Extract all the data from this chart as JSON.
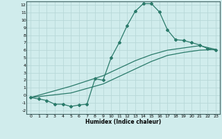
{
  "xlabel": "Humidex (Indice chaleur)",
  "bg_color": "#d0ecec",
  "grid_color": "#b8d8d8",
  "line_color": "#2a7a6a",
  "xlim": [
    -0.5,
    23.5
  ],
  "ylim": [
    -2.5,
    12.5
  ],
  "xticks": [
    0,
    1,
    2,
    3,
    4,
    5,
    6,
    7,
    8,
    9,
    10,
    11,
    12,
    13,
    14,
    15,
    16,
    17,
    18,
    19,
    20,
    21,
    22,
    23
  ],
  "yticks": [
    -2,
    -1,
    0,
    1,
    2,
    3,
    4,
    5,
    6,
    7,
    8,
    9,
    10,
    11,
    12
  ],
  "line1_x": [
    0,
    1,
    2,
    3,
    4,
    5,
    6,
    7,
    8,
    9,
    10,
    11,
    12,
    13,
    14,
    15,
    16,
    17,
    18,
    19,
    20,
    21,
    22,
    23
  ],
  "line1_y": [
    -0.3,
    -0.5,
    -0.7,
    -1.2,
    -1.2,
    -1.5,
    -1.3,
    -1.2,
    2.2,
    2.0,
    5.0,
    7.0,
    9.3,
    11.2,
    12.2,
    12.2,
    11.1,
    8.7,
    7.4,
    7.3,
    7.0,
    6.7,
    6.2,
    6.0
  ],
  "line2_x": [
    0,
    5,
    9,
    11,
    13,
    15,
    17,
    19,
    21,
    23
  ],
  "line2_y": [
    -0.3,
    1.2,
    2.6,
    3.6,
    4.6,
    5.4,
    6.0,
    6.3,
    6.6,
    6.1
  ],
  "line3_x": [
    0,
    5,
    9,
    11,
    13,
    15,
    17,
    19,
    21,
    23
  ],
  "line3_y": [
    -0.3,
    0.3,
    1.5,
    2.5,
    3.5,
    4.5,
    5.3,
    5.7,
    6.0,
    6.1
  ]
}
